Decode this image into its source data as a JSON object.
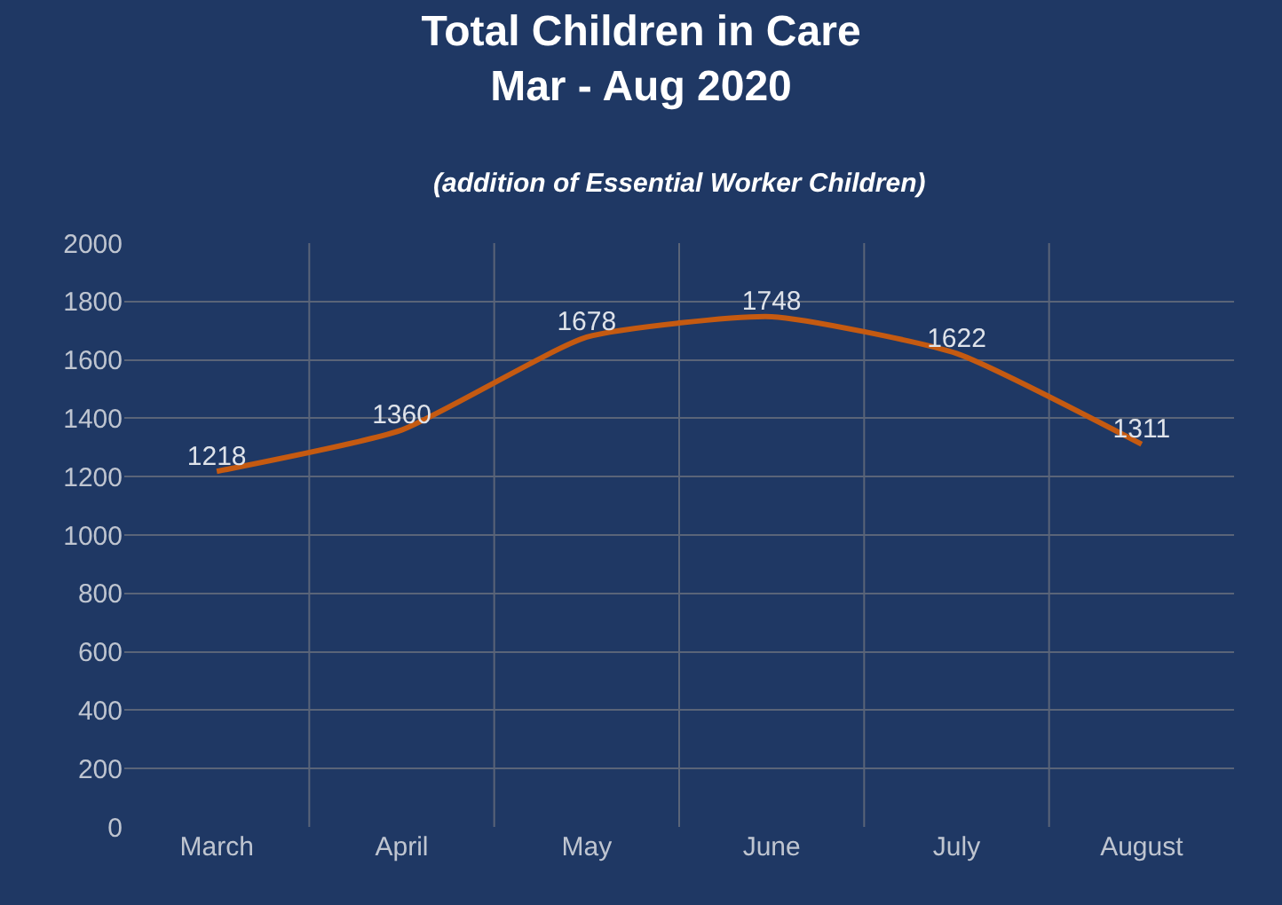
{
  "chart_data": {
    "type": "line",
    "title": "Total Children in Care\nMar - Aug 2020",
    "subtitle": "(addition of Essential Worker Children)",
    "categories": [
      "March",
      "April",
      "May",
      "June",
      "July",
      "August"
    ],
    "series": [
      {
        "color": "#c55a11",
        "values": [
          1218,
          1360,
          1678,
          1748,
          1622,
          1311
        ]
      }
    ],
    "ylim": [
      0,
      2000
    ],
    "yticks": [
      0,
      200,
      400,
      600,
      800,
      1000,
      1200,
      1400,
      1600,
      1800,
      2000
    ],
    "grid": true,
    "marker": "none",
    "line_style": "solid",
    "data_labels": true
  }
}
